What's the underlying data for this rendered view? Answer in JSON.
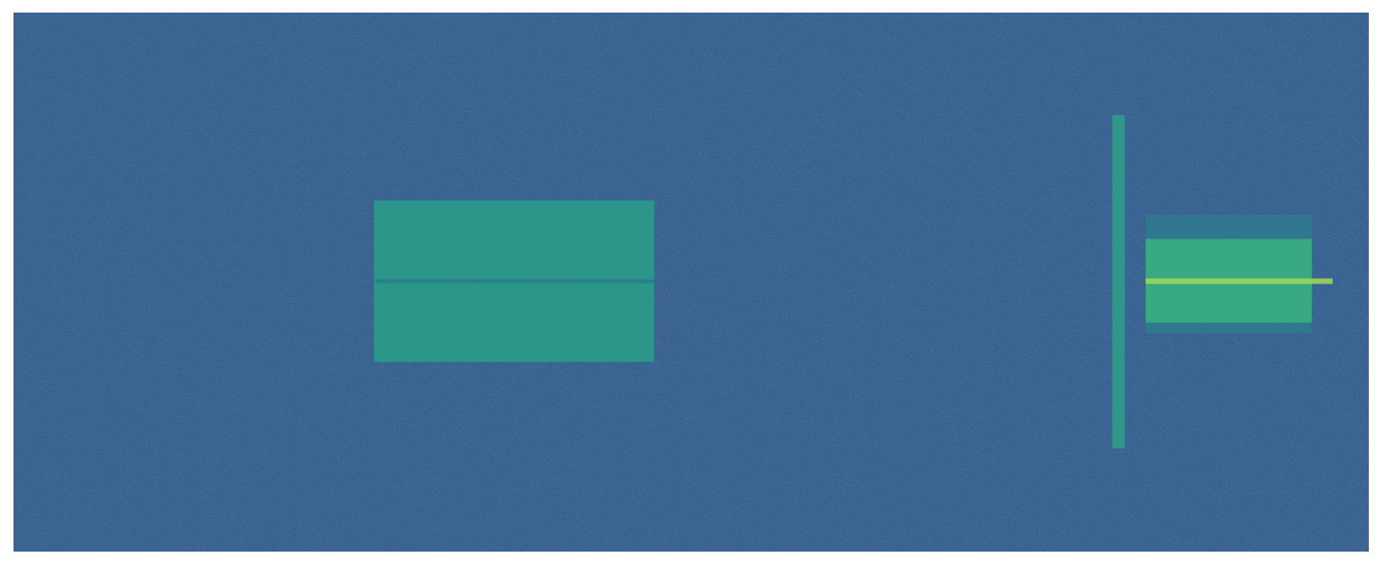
{
  "chart_data": {
    "type": "spectrogram",
    "xlim": [
      0,
      1500
    ],
    "ylim": [
      0,
      600
    ],
    "tick_labels": false,
    "grid": false,
    "color": "#33618d",
    "regions": [
      {
        "x": [
          399,
          709
        ],
        "y": [
          211,
          391
        ],
        "color": "#2a9a8a"
      },
      {
        "x": [
          401,
          709
        ],
        "y": [
          299,
          303
        ],
        "color": "#2b7d8c"
      },
      {
        "x": [
          1216,
          1230
        ],
        "y": [
          115,
          486
        ],
        "color": "#2d9b88"
      },
      {
        "x": [
          1253,
          1437
        ],
        "y": [
          243,
          375
        ],
        "color": "#2f7a8c"
      },
      {
        "x": [
          1253,
          1437
        ],
        "y": [
          255,
          348
        ],
        "color": "#3aae7f"
      },
      {
        "x": [
          1253,
          1460
        ],
        "y": [
          298,
          304
        ],
        "color": "#9bd45a"
      }
    ]
  }
}
